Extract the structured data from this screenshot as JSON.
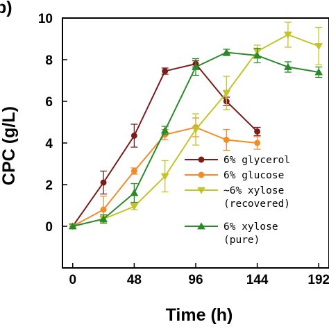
{
  "chart_data": {
    "type": "line",
    "panel_label": "b)",
    "xlabel": "Time (h)",
    "ylabel": "CPC (g/L)",
    "xlim": [
      -8,
      200
    ],
    "ylim": [
      -2,
      10
    ],
    "xticks": [
      0,
      48,
      96,
      144,
      192
    ],
    "yticks": [
      0,
      2,
      4,
      6,
      8,
      10
    ],
    "legend_position": "lower-right",
    "series": [
      {
        "name": "6% glycerol",
        "name_lines": [
          "6% glycerol"
        ],
        "marker": "circle",
        "color": "#7b1c1c",
        "x": [
          0,
          24,
          48,
          72,
          96,
          120,
          144
        ],
        "y": [
          0.0,
          2.1,
          4.35,
          7.45,
          7.8,
          6.0,
          4.55
        ],
        "err": [
          0.1,
          0.55,
          0.55,
          0.15,
          0.15,
          0.2,
          0.2
        ]
      },
      {
        "name": "6% glucose",
        "name_lines": [
          "6% glucose"
        ],
        "marker": "circle",
        "color": "#f28c28",
        "x": [
          0,
          24,
          48,
          72,
          96,
          120,
          144
        ],
        "y": [
          0.0,
          0.8,
          2.65,
          4.4,
          4.75,
          4.15,
          4.0
        ],
        "err": [
          0.1,
          0.65,
          0.15,
          0.25,
          0.45,
          0.5,
          0.3
        ]
      },
      {
        "name": "~6% xylose (recovered)",
        "name_lines": [
          "~6% xylose",
          "(recovered)"
        ],
        "marker": "triangle-down",
        "color": "#c3c32a",
        "x": [
          0,
          24,
          48,
          72,
          96,
          120,
          144,
          168,
          192
        ],
        "y": [
          0.0,
          0.35,
          0.95,
          2.4,
          4.65,
          6.4,
          8.4,
          9.2,
          8.65
        ],
        "err": [
          0.1,
          0.15,
          0.15,
          0.75,
          0.75,
          0.8,
          0.3,
          0.6,
          0.9
        ]
      },
      {
        "name": "6% xylose (pure)",
        "name_lines": [
          "6% xylose",
          "(pure)"
        ],
        "marker": "triangle-up",
        "color": "#2a8a2a",
        "x": [
          0,
          24,
          48,
          72,
          96,
          120,
          144,
          168,
          192
        ],
        "y": [
          0.0,
          0.35,
          1.6,
          4.6,
          7.65,
          8.35,
          8.2,
          7.65,
          7.4
        ],
        "err": [
          0.1,
          0.2,
          0.45,
          0.2,
          0.4,
          0.15,
          0.35,
          0.25,
          0.25
        ]
      }
    ]
  }
}
